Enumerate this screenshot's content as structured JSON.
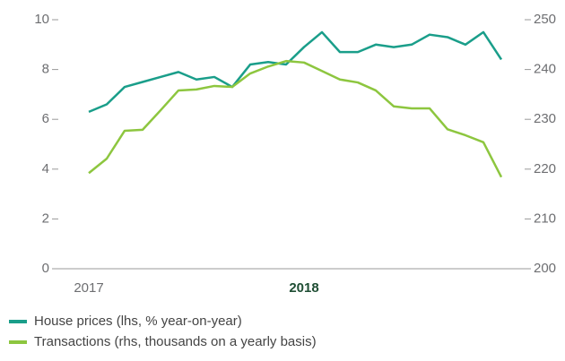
{
  "chart_data": {
    "type": "line",
    "categories": [
      "2017",
      null,
      null,
      null,
      null,
      null,
      null,
      null,
      null,
      null,
      null,
      null,
      "2018",
      null,
      null,
      null,
      null,
      null,
      null,
      null,
      null,
      null,
      null,
      null
    ],
    "series": [
      {
        "name": "House prices (lhs, % year-on-year)",
        "color": "#1a9e8a",
        "values": [
          6.3,
          6.6,
          7.3,
          7.5,
          7.7,
          7.9,
          7.6,
          7.7,
          7.3,
          8.2,
          8.3,
          8.2,
          8.9,
          9.5,
          8.7,
          8.7,
          9.0,
          8.9,
          9.0,
          9.4,
          9.3,
          9.0,
          9.5,
          8.4
        ]
      },
      {
        "name": "Transactions (rhs, thousands on a yearly basis)",
        "color": "#8dc63f",
        "axis": "y2",
        "values": [
          219.2,
          222.1,
          227.7,
          227.9,
          231.8,
          235.8,
          236.0,
          236.7,
          236.5,
          239.2,
          240.6,
          241.7,
          241.4,
          239.7,
          238.0,
          237.4,
          235.8,
          232.6,
          232.2,
          232.2,
          228.0,
          226.8,
          225.4,
          218.4
        ]
      }
    ],
    "ylim": [
      0,
      10
    ],
    "yticks": [
      0,
      2,
      4,
      6,
      8,
      10
    ],
    "y2lim": [
      200,
      250
    ],
    "y2ticks": [
      200,
      210,
      220,
      230,
      240,
      250
    ]
  }
}
